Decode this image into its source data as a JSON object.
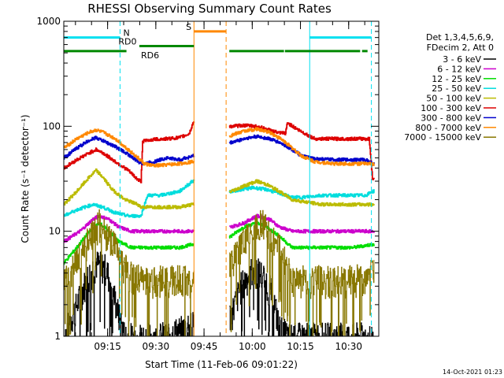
{
  "chart_data": {
    "type": "line",
    "title": "RHESSI Observing Summary Count Rates",
    "xlabel": "Start Time (11-Feb-06 09:01:22)",
    "ylabel": "Count Rate (s⁻¹ detector⁻¹)",
    "yscale": "log",
    "ylim": [
      1,
      1000
    ],
    "xlim_minutes": [
      0,
      98
    ],
    "y_ticks": [
      {
        "value": 1,
        "label": "1"
      },
      {
        "value": 10,
        "label": "10"
      },
      {
        "value": 100,
        "label": "100"
      },
      {
        "value": 1000,
        "label": "1000"
      }
    ],
    "x_ticks": [
      {
        "minute": 13.63,
        "label": "09:15"
      },
      {
        "minute": 28.63,
        "label": "09:30"
      },
      {
        "minute": 43.63,
        "label": "09:45"
      },
      {
        "minute": 58.63,
        "label": "10:00"
      },
      {
        "minute": 73.63,
        "label": "10:15"
      },
      {
        "minute": 88.63,
        "label": "10:30"
      }
    ],
    "legend_header": [
      "Det 1,3,4,5,6,9,",
      "FDecim 2, Att 0"
    ],
    "gap": {
      "start": 40.5,
      "end": 51.5
    },
    "series": [
      {
        "name": "3 - 6 keV",
        "color": "#000000",
        "points": [
          [
            0,
            1.0
          ],
          [
            4,
            2.0
          ],
          [
            7,
            3.5
          ],
          [
            10,
            5.0
          ],
          [
            13,
            4.5
          ],
          [
            15,
            3.0
          ],
          [
            17,
            1.6
          ],
          [
            19,
            1.0
          ],
          [
            30,
            1.0
          ],
          [
            38,
            1.2
          ],
          [
            40,
            1.6
          ],
          [
            52,
            1.6
          ],
          [
            55,
            3.0
          ],
          [
            59,
            4.5
          ],
          [
            62,
            3.8
          ],
          [
            65,
            2.5
          ],
          [
            67,
            1.2
          ],
          [
            70,
            1.0
          ],
          [
            96,
            1.0
          ]
        ]
      },
      {
        "name": "6 - 12 keV",
        "color": "#cc00cc",
        "points": [
          [
            0,
            8
          ],
          [
            5,
            10
          ],
          [
            9,
            13
          ],
          [
            11,
            14
          ],
          [
            14,
            13
          ],
          [
            17,
            11
          ],
          [
            21,
            10
          ],
          [
            24,
            10
          ],
          [
            30,
            10
          ],
          [
            36,
            10
          ],
          [
            40,
            10
          ],
          [
            52,
            11
          ],
          [
            56,
            12
          ],
          [
            60,
            14
          ],
          [
            64,
            13
          ],
          [
            67,
            11
          ],
          [
            71,
            10
          ],
          [
            80,
            10
          ],
          [
            90,
            10
          ],
          [
            96,
            10
          ]
        ]
      },
      {
        "name": "12 - 25 keV",
        "color": "#00dd00",
        "points": [
          [
            0,
            5
          ],
          [
            4,
            7
          ],
          [
            8,
            10
          ],
          [
            11,
            12
          ],
          [
            14,
            10
          ],
          [
            17,
            8
          ],
          [
            21,
            7
          ],
          [
            24,
            7
          ],
          [
            30,
            7
          ],
          [
            36,
            7
          ],
          [
            40,
            7.5
          ],
          [
            52,
            9
          ],
          [
            56,
            11
          ],
          [
            60,
            12
          ],
          [
            63,
            11
          ],
          [
            67,
            9
          ],
          [
            71,
            7
          ],
          [
            80,
            7
          ],
          [
            90,
            7
          ],
          [
            96,
            7.5
          ]
        ]
      },
      {
        "name": "25 - 50 keV",
        "color": "#00dddd",
        "points": [
          [
            0,
            14
          ],
          [
            4,
            16
          ],
          [
            9,
            18
          ],
          [
            12,
            17
          ],
          [
            16,
            15
          ],
          [
            20,
            14
          ],
          [
            24,
            14
          ],
          [
            26,
            22
          ],
          [
            30,
            22
          ],
          [
            36,
            24
          ],
          [
            40,
            30
          ],
          [
            52,
            24
          ],
          [
            55,
            25
          ],
          [
            59,
            26
          ],
          [
            63,
            25
          ],
          [
            67,
            23
          ],
          [
            71,
            21
          ],
          [
            74,
            21
          ],
          [
            80,
            22
          ],
          [
            90,
            22
          ],
          [
            94,
            22
          ],
          [
            96,
            24
          ]
        ]
      },
      {
        "name": "50 - 100 keV",
        "color": "#bbbb00",
        "points": [
          [
            0,
            18
          ],
          [
            4,
            24
          ],
          [
            8,
            33
          ],
          [
            10,
            38
          ],
          [
            12,
            33
          ],
          [
            15,
            25
          ],
          [
            19,
            20
          ],
          [
            23,
            18
          ],
          [
            24,
            17
          ],
          [
            30,
            17
          ],
          [
            36,
            17
          ],
          [
            40,
            18
          ],
          [
            52,
            24
          ],
          [
            56,
            27
          ],
          [
            60,
            30
          ],
          [
            63,
            28
          ],
          [
            67,
            24
          ],
          [
            71,
            20
          ],
          [
            80,
            18
          ],
          [
            90,
            18
          ],
          [
            96,
            18
          ]
        ]
      },
      {
        "name": "100 - 300 keV",
        "color": "#dd0000",
        "points": [
          [
            0,
            40
          ],
          [
            4,
            48
          ],
          [
            8,
            56
          ],
          [
            10,
            60
          ],
          [
            12,
            56
          ],
          [
            16,
            46
          ],
          [
            20,
            38
          ],
          [
            23,
            31
          ],
          [
            24,
            30
          ],
          [
            24.5,
            72
          ],
          [
            28,
            75
          ],
          [
            32,
            76
          ],
          [
            36,
            78
          ],
          [
            39,
            85
          ],
          [
            40.2,
            108
          ],
          [
            52,
            100
          ],
          [
            56,
            102
          ],
          [
            60,
            100
          ],
          [
            64,
            92
          ],
          [
            67,
            86
          ],
          [
            69,
            86
          ],
          [
            69.5,
            108
          ],
          [
            73,
            92
          ],
          [
            78,
            76
          ],
          [
            84,
            76
          ],
          [
            90,
            76
          ],
          [
            95,
            76
          ],
          [
            96,
            32
          ]
        ]
      },
      {
        "name": "300 - 800 keV",
        "color": "#0000cc",
        "points": [
          [
            0,
            50
          ],
          [
            4,
            62
          ],
          [
            8,
            74
          ],
          [
            10,
            78
          ],
          [
            12,
            73
          ],
          [
            16,
            64
          ],
          [
            20,
            54
          ],
          [
            23,
            46
          ],
          [
            25,
            44
          ],
          [
            28,
            46
          ],
          [
            32,
            50
          ],
          [
            36,
            48
          ],
          [
            40,
            52
          ],
          [
            52,
            70
          ],
          [
            56,
            76
          ],
          [
            60,
            80
          ],
          [
            64,
            76
          ],
          [
            68,
            68
          ],
          [
            71,
            60
          ],
          [
            74,
            52
          ],
          [
            78,
            49
          ],
          [
            84,
            48
          ],
          [
            90,
            48
          ],
          [
            94,
            48
          ],
          [
            96,
            44
          ]
        ]
      },
      {
        "name": "800 - 7000 keV",
        "color": "#ff8800",
        "points": [
          [
            0,
            62
          ],
          [
            4,
            76
          ],
          [
            8,
            88
          ],
          [
            10,
            92
          ],
          [
            12,
            88
          ],
          [
            16,
            76
          ],
          [
            20,
            60
          ],
          [
            23,
            50
          ],
          [
            25,
            44
          ],
          [
            28,
            42
          ],
          [
            32,
            43
          ],
          [
            36,
            44
          ],
          [
            40,
            46
          ],
          [
            52,
            82
          ],
          [
            56,
            90
          ],
          [
            60,
            94
          ],
          [
            64,
            88
          ],
          [
            68,
            74
          ],
          [
            71,
            62
          ],
          [
            74,
            52
          ],
          [
            78,
            46
          ],
          [
            84,
            44
          ],
          [
            90,
            44
          ],
          [
            94,
            44
          ],
          [
            96,
            44
          ]
        ]
      },
      {
        "name": "7000 - 15000 keV",
        "color": "#887700",
        "points": [
          [
            0,
            3.5
          ],
          [
            3,
            4.5
          ],
          [
            6,
            7
          ],
          [
            9,
            10
          ],
          [
            11,
            12
          ],
          [
            13,
            10
          ],
          [
            16,
            7
          ],
          [
            20,
            4
          ],
          [
            24,
            3.5
          ],
          [
            30,
            3.5
          ],
          [
            36,
            3.5
          ],
          [
            40,
            3.5
          ],
          [
            52,
            5
          ],
          [
            56,
            8
          ],
          [
            59,
            11
          ],
          [
            62,
            12
          ],
          [
            65,
            9
          ],
          [
            68,
            6
          ],
          [
            71,
            3.5
          ],
          [
            80,
            3.5
          ],
          [
            90,
            3.5
          ],
          [
            96,
            4
          ]
        ]
      }
    ],
    "vertical_lines": [
      {
        "minute": 0,
        "color": "#00e0f0",
        "style": "solid"
      },
      {
        "minute": 17.5,
        "color": "#00e0f0",
        "style": "dashed"
      },
      {
        "minute": 76.5,
        "color": "#00e0f0",
        "style": "solid"
      },
      {
        "minute": 95.7,
        "color": "#00e0f0",
        "style": "dashed"
      },
      {
        "minute": 40.5,
        "color": "#ff8800",
        "style": "solid"
      },
      {
        "minute": 50.5,
        "color": "#ff8800",
        "style": "dashed"
      }
    ],
    "flag_bars": [
      {
        "label": "N",
        "color": "#00e0f0",
        "y": 700,
        "segments": [
          [
            0,
            17.5
          ],
          [
            76.5,
            95.7
          ]
        ],
        "label_minute": 18.5
      },
      {
        "label": "RD0",
        "color": "#008800",
        "y": 580,
        "segments": [
          [
            23.5,
            40.5
          ]
        ],
        "label_minute": 17.0
      },
      {
        "label": "RD6",
        "color": "#008800",
        "y": 520,
        "segments": [
          [
            0,
            19.5
          ],
          [
            51.5,
            68.5
          ],
          [
            68.8,
            92.2
          ],
          [
            92.8,
            94.5
          ]
        ],
        "label_minute": 24.0
      },
      {
        "label": "S",
        "color": "#ff8800",
        "y": 800,
        "segments": [
          [
            40.5,
            50.5
          ]
        ],
        "label_minute": 38.0
      }
    ]
  },
  "footer_date": "14-Oct-2021 01:23"
}
